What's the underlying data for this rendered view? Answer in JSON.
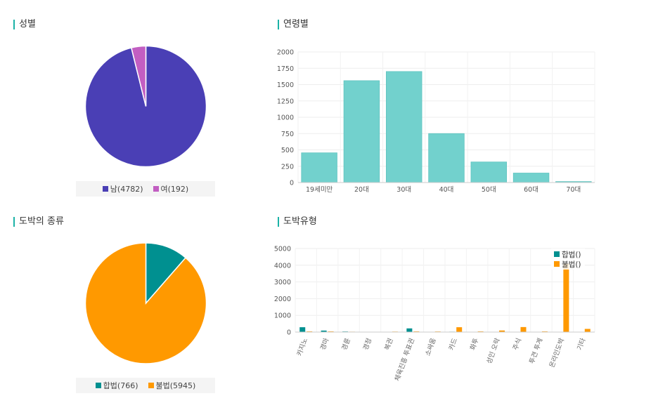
{
  "panels": {
    "gender_title": "성별",
    "age_title": "연령별",
    "kind_title": "도박의 종류",
    "type_title": "도박유형"
  },
  "chart_data": [
    {
      "id": "gender",
      "type": "pie",
      "labels": [
        "남",
        "여"
      ],
      "values": [
        4782,
        192
      ],
      "legend": [
        "남(4782)",
        "여(192)"
      ],
      "colors": [
        "#4a3fb5",
        "#c25ec2"
      ]
    },
    {
      "id": "age",
      "type": "bar",
      "categories": [
        "19세미만",
        "20대",
        "30대",
        "40대",
        "50대",
        "60대",
        "70대"
      ],
      "values": [
        455,
        1560,
        1700,
        750,
        315,
        145,
        15
      ],
      "ylim": [
        0,
        2000
      ],
      "yticks": [
        0,
        250,
        500,
        750,
        1000,
        1250,
        1500,
        1750,
        2000
      ],
      "color": "#72d1cd",
      "grid": true
    },
    {
      "id": "kind",
      "type": "pie",
      "labels": [
        "합법",
        "불법"
      ],
      "values": [
        766,
        5945
      ],
      "legend": [
        "합법(766)",
        "불법(5945)"
      ],
      "colors": [
        "#009090",
        "#ff9900"
      ]
    },
    {
      "id": "type",
      "type": "bar",
      "categories": [
        "카지노",
        "경마",
        "경륜",
        "경정",
        "복권",
        "체육진흥 투표권",
        "소싸움",
        "카드",
        "화투",
        "성인 오락",
        "주식",
        "투견 투계",
        "온라인도박",
        "기타"
      ],
      "series": [
        {
          "name": "합법()",
          "values": [
            290,
            90,
            35,
            20,
            10,
            220,
            10,
            25,
            10,
            15,
            20,
            10,
            15,
            15
          ],
          "color": "#009090"
        },
        {
          "name": "불법()",
          "values": [
            40,
            40,
            25,
            20,
            30,
            40,
            35,
            290,
            40,
            95,
            300,
            40,
            4100,
            190
          ],
          "color": "#ff9900"
        }
      ],
      "ylim": [
        0,
        5000
      ],
      "yticks": [
        0,
        1000,
        2000,
        3000,
        4000,
        5000
      ],
      "legend_position": "top-right",
      "grid": true
    }
  ]
}
